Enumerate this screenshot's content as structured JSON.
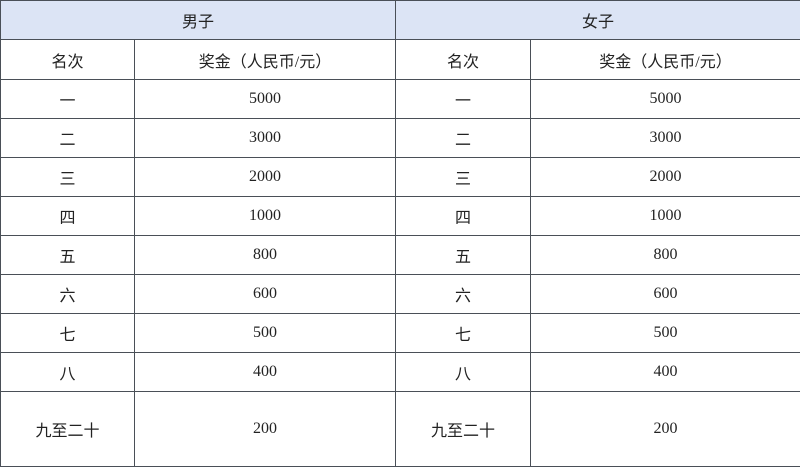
{
  "groups": [
    {
      "label": "男子"
    },
    {
      "label": "女子"
    }
  ],
  "headers": {
    "rank": "名次",
    "prize": "奖金（人民币/元）"
  },
  "header_bg": "#dce4f5",
  "rows": [
    {
      "rank": "一",
      "men": "5000",
      "women": "5000"
    },
    {
      "rank": "二",
      "men": "3000",
      "women": "3000"
    },
    {
      "rank": "三",
      "men": "2000",
      "women": "2000"
    },
    {
      "rank": "四",
      "men": "1000",
      "women": "1000"
    },
    {
      "rank": "五",
      "men": "800",
      "women": "800"
    },
    {
      "rank": "六",
      "men": "600",
      "women": "600"
    },
    {
      "rank": "七",
      "men": "500",
      "women": "500"
    },
    {
      "rank": "八",
      "men": "400",
      "women": "400"
    },
    {
      "rank": "九至二十",
      "men": "200",
      "women": "200"
    }
  ]
}
